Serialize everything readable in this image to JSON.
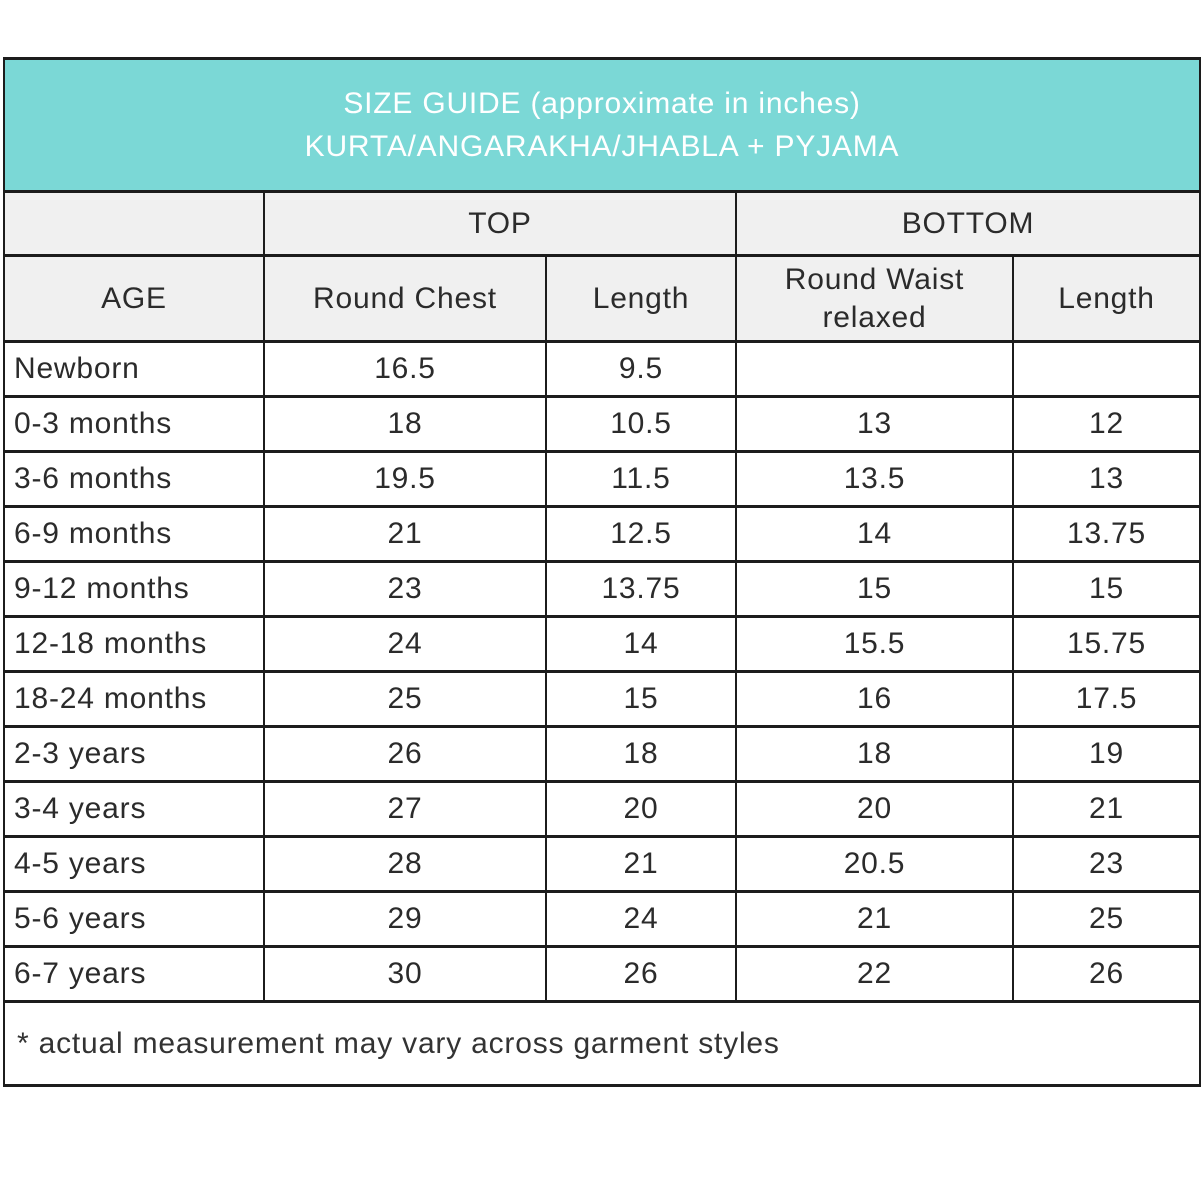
{
  "title": {
    "line1": "SIZE GUIDE (approximate in inches)",
    "line2": "KURTA/ANGARAKHA/JHABLA + PYJAMA"
  },
  "colors": {
    "header_teal": "#7bd8d6",
    "header_gray": "#f0f0f0",
    "border": "#1c1c1c",
    "title_text": "#ffffff",
    "body_text": "#2b2b2b"
  },
  "table": {
    "group_headers": {
      "corner": "",
      "top": "TOP",
      "bottom": "BOTTOM"
    },
    "column_headers": [
      "AGE",
      "Round Chest",
      "Length",
      "Round Waist relaxed",
      "Length"
    ],
    "rows": [
      {
        "age": "Newborn",
        "top_round_chest": "16.5",
        "top_length": "9.5",
        "bottom_round_waist": "",
        "bottom_length": ""
      },
      {
        "age": "0-3 months",
        "top_round_chest": "18",
        "top_length": "10.5",
        "bottom_round_waist": "13",
        "bottom_length": "12"
      },
      {
        "age": "3-6 months",
        "top_round_chest": "19.5",
        "top_length": "11.5",
        "bottom_round_waist": "13.5",
        "bottom_length": "13"
      },
      {
        "age": "6-9 months",
        "top_round_chest": "21",
        "top_length": "12.5",
        "bottom_round_waist": "14",
        "bottom_length": "13.75"
      },
      {
        "age": "9-12 months",
        "top_round_chest": "23",
        "top_length": "13.75",
        "bottom_round_waist": "15",
        "bottom_length": "15"
      },
      {
        "age": "12-18 months",
        "top_round_chest": "24",
        "top_length": "14",
        "bottom_round_waist": "15.5",
        "bottom_length": "15.75"
      },
      {
        "age": "18-24 months",
        "top_round_chest": "25",
        "top_length": "15",
        "bottom_round_waist": "16",
        "bottom_length": "17.5"
      },
      {
        "age": "2-3 years",
        "top_round_chest": "26",
        "top_length": "18",
        "bottom_round_waist": "18",
        "bottom_length": "19"
      },
      {
        "age": "3-4 years",
        "top_round_chest": "27",
        "top_length": "20",
        "bottom_round_waist": "20",
        "bottom_length": "21"
      },
      {
        "age": "4-5 years",
        "top_round_chest": "28",
        "top_length": "21",
        "bottom_round_waist": "20.5",
        "bottom_length": "23"
      },
      {
        "age": "5-6 years",
        "top_round_chest": "29",
        "top_length": "24",
        "bottom_round_waist": "21",
        "bottom_length": "25"
      },
      {
        "age": "6-7 years",
        "top_round_chest": "30",
        "top_length": "26",
        "bottom_round_waist": "22",
        "bottom_length": "26"
      }
    ],
    "footnote": "* actual measurement may vary across garment styles"
  }
}
